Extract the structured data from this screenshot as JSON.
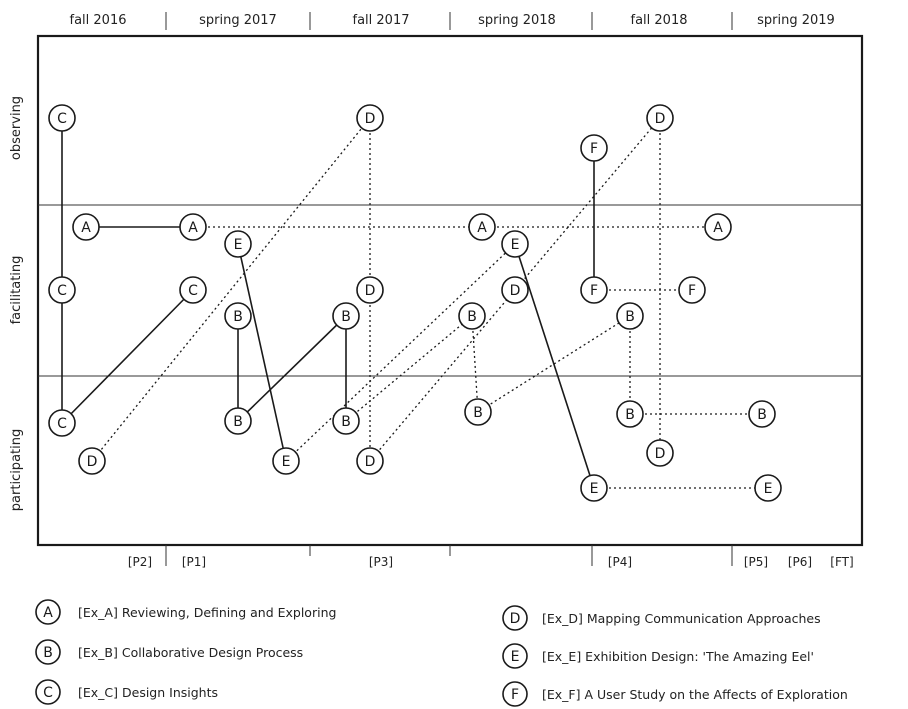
{
  "semesters": [
    "fall 2016",
    "spring 2017",
    "fall 2017",
    "spring 2018",
    "fall 2018",
    "spring 2019"
  ],
  "rows": [
    "observing",
    "facilitating",
    "participating"
  ],
  "phases": [
    "[P2]",
    "[P1]",
    "[P3]",
    "[P4]",
    "[P5]",
    "[P6]",
    "[FT]"
  ],
  "legend": [
    {
      "letter": "A",
      "text": "[Ex_A] Reviewing, Defining and Exploring"
    },
    {
      "letter": "B",
      "text": "[Ex_B] Collaborative Design Process"
    },
    {
      "letter": "C",
      "text": "[Ex_C] Design Insights"
    },
    {
      "letter": "D",
      "text": "[Ex_D] Mapping Communication Approaches"
    },
    {
      "letter": "E",
      "text": "[Ex_E] Exhibition Design: 'The Amazing Eel'"
    },
    {
      "letter": "F",
      "text": "[Ex_F] A User Study on the Affects of Exploration"
    }
  ],
  "nodes": [
    {
      "id": "C1",
      "letter": "C"
    },
    {
      "id": "C2",
      "letter": "C"
    },
    {
      "id": "C3",
      "letter": "C"
    },
    {
      "id": "C4",
      "letter": "C"
    },
    {
      "id": "A1",
      "letter": "A"
    },
    {
      "id": "A2",
      "letter": "A"
    },
    {
      "id": "A3",
      "letter": "A"
    },
    {
      "id": "A4",
      "letter": "A"
    },
    {
      "id": "D1",
      "letter": "D"
    },
    {
      "id": "D2",
      "letter": "D"
    },
    {
      "id": "D3",
      "letter": "D"
    },
    {
      "id": "D4",
      "letter": "D"
    },
    {
      "id": "D5",
      "letter": "D"
    },
    {
      "id": "D6",
      "letter": "D"
    },
    {
      "id": "D7",
      "letter": "D"
    },
    {
      "id": "E1",
      "letter": "E"
    },
    {
      "id": "E2",
      "letter": "E"
    },
    {
      "id": "E3",
      "letter": "E"
    },
    {
      "id": "E4",
      "letter": "E"
    },
    {
      "id": "E5",
      "letter": "E"
    },
    {
      "id": "B1",
      "letter": "B"
    },
    {
      "id": "B2",
      "letter": "B"
    },
    {
      "id": "B3",
      "letter": "B"
    },
    {
      "id": "B4",
      "letter": "B"
    },
    {
      "id": "B5",
      "letter": "B"
    },
    {
      "id": "B6",
      "letter": "B"
    },
    {
      "id": "B7",
      "letter": "B"
    },
    {
      "id": "B8",
      "letter": "B"
    },
    {
      "id": "B9",
      "letter": "B"
    },
    {
      "id": "F1",
      "letter": "F"
    },
    {
      "id": "F2",
      "letter": "F"
    },
    {
      "id": "F3",
      "letter": "F"
    }
  ],
  "edges": [
    {
      "from": "C1",
      "to": "C2",
      "style": "solid"
    },
    {
      "from": "C2",
      "to": "C3",
      "style": "solid"
    },
    {
      "from": "C3",
      "to": "C4",
      "style": "solid"
    },
    {
      "from": "A1",
      "to": "A2",
      "style": "solid"
    },
    {
      "from": "A2",
      "to": "A3",
      "style": "dotted"
    },
    {
      "from": "A3",
      "to": "A4",
      "style": "dotted"
    },
    {
      "from": "D1",
      "to": "D2",
      "style": "dotted"
    },
    {
      "from": "D2",
      "to": "D3",
      "style": "dotted"
    },
    {
      "from": "D3",
      "to": "D4",
      "style": "dotted"
    },
    {
      "from": "D4",
      "to": "D5",
      "style": "dotted"
    },
    {
      "from": "D5",
      "to": "D6",
      "style": "dotted"
    },
    {
      "from": "D6",
      "to": "D7",
      "style": "dotted"
    },
    {
      "from": "E1",
      "to": "E2",
      "style": "solid"
    },
    {
      "from": "E2",
      "to": "E3",
      "style": "dotted"
    },
    {
      "from": "E3",
      "to": "E4",
      "style": "solid"
    },
    {
      "from": "E4",
      "to": "E5",
      "style": "dotted"
    },
    {
      "from": "B1",
      "to": "B2",
      "style": "solid"
    },
    {
      "from": "B2",
      "to": "B3",
      "style": "solid"
    },
    {
      "from": "B3",
      "to": "B4",
      "style": "solid"
    },
    {
      "from": "B4",
      "to": "B5",
      "style": "dotted"
    },
    {
      "from": "B5",
      "to": "B6",
      "style": "dotted"
    },
    {
      "from": "B6",
      "to": "B7",
      "style": "dotted"
    },
    {
      "from": "B7",
      "to": "B8",
      "style": "dotted"
    },
    {
      "from": "B8",
      "to": "B9",
      "style": "dotted"
    },
    {
      "from": "F1",
      "to": "F2",
      "style": "solid"
    },
    {
      "from": "F2",
      "to": "F3",
      "style": "dotted"
    }
  ]
}
